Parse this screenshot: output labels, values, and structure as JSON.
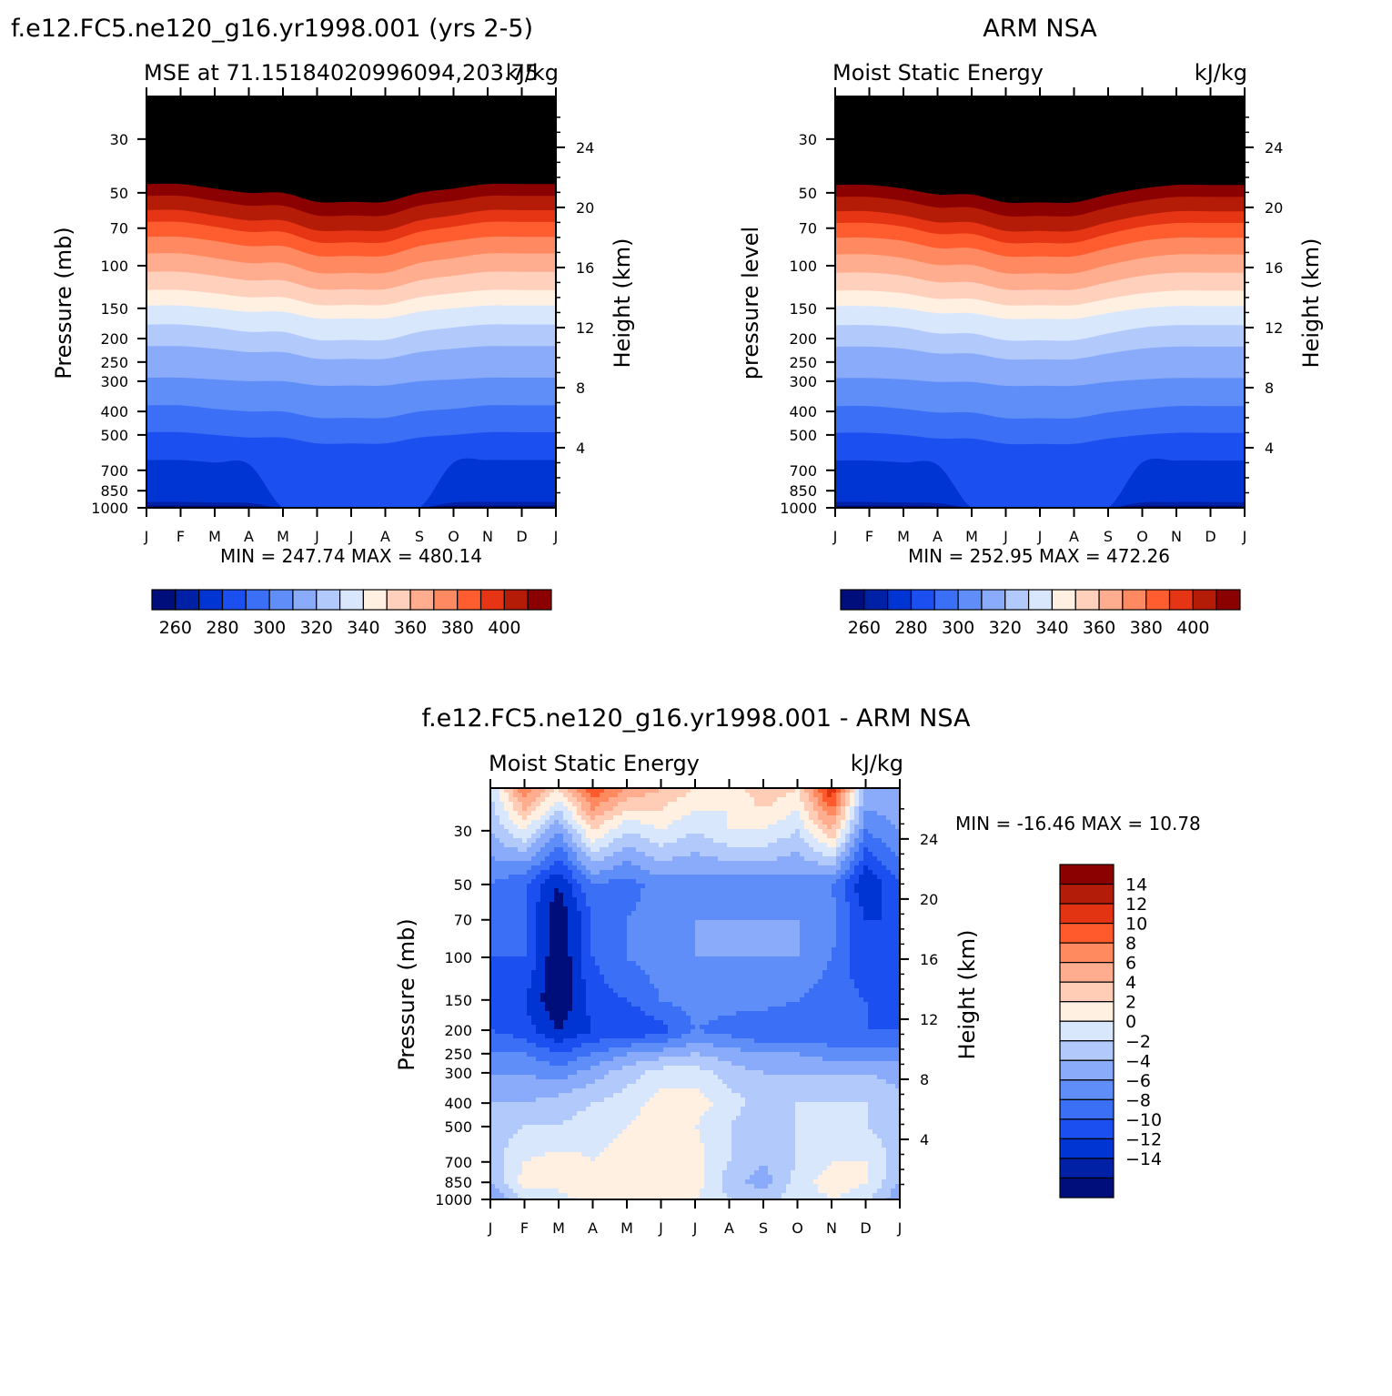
{
  "figure": {
    "model_title": "f.e12.FC5.ne120_g16.yr1998.001 (yrs 2-5)",
    "obs_title": "ARM NSA",
    "diff_title": "f.e12.FC5.ne120_g16.yr1998.001 - ARM NSA"
  },
  "chart_data": [
    {
      "id": "model",
      "type": "heatmap",
      "title": "f.e12.FC5.ne120_g16.yr1998.001 (yrs 2-5)",
      "subtitle_left": "MSE at 71.15184020996094,203.75",
      "units": "kJ/kg",
      "ylabel": "Pressure (mb)",
      "ylabel_right": "Height (km)",
      "x_ticks": [
        "J",
        "F",
        "M",
        "A",
        "M",
        "J",
        "J",
        "A",
        "S",
        "O",
        "N",
        "D",
        "J"
      ],
      "p_ticks": [
        30,
        50,
        70,
        100,
        150,
        200,
        250,
        300,
        400,
        500,
        700,
        850,
        1000
      ],
      "p_range": [
        20,
        1000
      ],
      "z_ticks": [
        4,
        8,
        12,
        16,
        20,
        24
      ],
      "minmax_text": "MIN = 247.74 MAX = 480.14",
      "min": 247.74,
      "max": 480.14,
      "colorbar_levels": [
        260,
        270,
        280,
        290,
        300,
        310,
        320,
        330,
        340,
        350,
        360,
        370,
        380,
        390,
        400
      ],
      "colorbar_labels": [
        "260",
        "280",
        "300",
        "320",
        "340",
        "360",
        "380",
        "400"
      ],
      "band_boundaries_mb": [
        [
          1000,
          990,
          985,
          980,
          980
        ],
        [
          1000,
          980,
          960,
          950,
          940
        ],
        [
          1000,
          720,
          670,
          650,
          620
        ],
        [
          1000,
          560,
          525,
          500,
          475
        ],
        [
          1000,
          440,
          410,
          390,
          365
        ],
        [
          1000,
          320,
          305,
          295,
          285
        ],
        [
          1000,
          250,
          235,
          220,
          210
        ],
        [
          1000,
          210,
          195,
          180,
          170
        ],
        [
          1000,
          170,
          160,
          150,
          142
        ],
        [
          990,
          150,
          140,
          130,
          122
        ],
        [
          980,
          130,
          120,
          110,
          102
        ],
        [
          960,
          112,
          102,
          93,
          85
        ],
        [
          940,
          95,
          87,
          79,
          73
        ],
        [
          920,
          84,
          76,
          69,
          63
        ],
        [
          900,
          75,
          68,
          62,
          56
        ],
        [
          880,
          65,
          59,
          54,
          49
        ],
        [
          860,
          57,
          52,
          48,
          44
        ]
      ]
    },
    {
      "id": "obs",
      "type": "heatmap",
      "title": "ARM NSA",
      "subtitle_left": "Moist Static Energy",
      "units": "kJ/kg",
      "ylabel": "pressure level",
      "ylabel_right": "Height (km)",
      "x_ticks": [
        "J",
        "F",
        "M",
        "A",
        "M",
        "J",
        "J",
        "A",
        "S",
        "O",
        "N",
        "D",
        "J"
      ],
      "p_ticks": [
        30,
        50,
        70,
        100,
        150,
        200,
        250,
        300,
        400,
        500,
        700,
        850,
        1000
      ],
      "p_range": [
        20,
        1000
      ],
      "z_ticks": [
        4,
        8,
        12,
        16,
        20,
        24
      ],
      "minmax_text": "MIN = 252.95 MAX = 472.26",
      "min": 252.95,
      "max": 472.26,
      "colorbar_levels": [
        260,
        270,
        280,
        290,
        300,
        310,
        320,
        330,
        340,
        350,
        360,
        370,
        380,
        390,
        400
      ],
      "colorbar_labels": [
        "260",
        "280",
        "300",
        "320",
        "340",
        "360",
        "380",
        "400"
      ]
    },
    {
      "id": "diff",
      "type": "heatmap",
      "title": "f.e12.FC5.ne120_g16.yr1998.001 - ARM NSA",
      "subtitle_left": "Moist Static Energy",
      "units": "kJ/kg",
      "ylabel": "Pressure (mb)",
      "ylabel_right": "Height (km)",
      "x_ticks": [
        "J",
        "F",
        "M",
        "A",
        "M",
        "J",
        "J",
        "A",
        "S",
        "O",
        "N",
        "D",
        "J"
      ],
      "p_ticks": [
        30,
        50,
        70,
        100,
        150,
        200,
        250,
        300,
        400,
        500,
        700,
        850,
        1000
      ],
      "p_range": [
        20,
        1000
      ],
      "z_ticks": [
        4,
        8,
        12,
        16,
        20,
        24
      ],
      "minmax_text": "MIN = -16.46 MAX =  10.78",
      "min": -16.46,
      "max": 10.78,
      "colorbar_levels": [
        14,
        13,
        12,
        11,
        10,
        9,
        8,
        7,
        6,
        5,
        4,
        3,
        2,
        1,
        0,
        -1,
        -2,
        -3,
        -4,
        -5,
        -6,
        -7,
        -8,
        -9,
        -10,
        -11,
        -12,
        -13,
        -14,
        -15
      ],
      "colorbar_labels": [
        "14",
        "12",
        "10",
        "8",
        "6",
        "4",
        "2",
        "0",
        "-2",
        "-4",
        "-6",
        "-8",
        "-10",
        "-12",
        "-14"
      ]
    }
  ],
  "palette": {
    "sequential": [
      "#000e7c",
      "#0021a6",
      "#0035d3",
      "#1b4ff0",
      "#3b6ff6",
      "#5f8ef8",
      "#89abfa",
      "#b2c9fc",
      "#d9e7fd",
      "#fff0e2",
      "#ffd0bb",
      "#ffac8f",
      "#ff8960",
      "#ff5d2f",
      "#e53514",
      "#b51c08",
      "#8b0000"
    ],
    "diff": [
      "#8b0000",
      "#b21c08",
      "#e23413",
      "#ff5a2c",
      "#ff8a60",
      "#ffac8f",
      "#ffcdb6",
      "#fff0e2",
      "#d9e7fd",
      "#b2c9fc",
      "#89abfa",
      "#5f8ef8",
      "#3b6ff6",
      "#1b4ff0",
      "#0035d3",
      "#0021a6",
      "#000e7c"
    ]
  }
}
